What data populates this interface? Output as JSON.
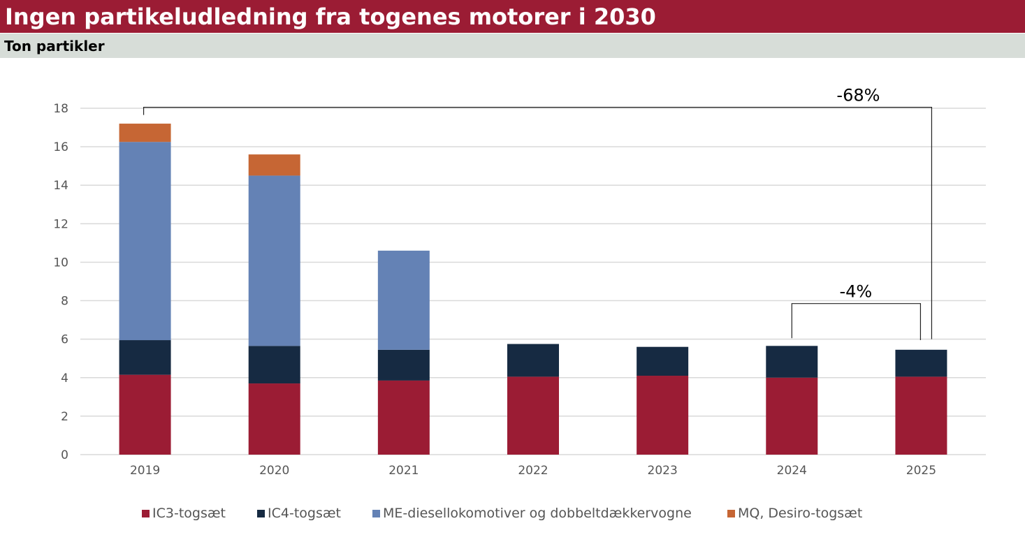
{
  "header": {
    "title": "Ingen partikeludledning fra togenes motorer i 2030",
    "subtitle": "Ton partikler"
  },
  "colors": {
    "title_bg": "#9b1c34",
    "subtitle_bg": "#d7ddd8",
    "gridline": "#d9d9d9",
    "axis_text": "#555555"
  },
  "chart_data": {
    "type": "bar",
    "stacked": true,
    "categories": [
      "2019",
      "2020",
      "2021",
      "2022",
      "2023",
      "2024",
      "2025"
    ],
    "series": [
      {
        "name": "IC3-togsæt",
        "color": "#9b1c34",
        "values": [
          4.15,
          3.7,
          3.85,
          4.05,
          4.1,
          4.0,
          4.05
        ]
      },
      {
        "name": "IC4-togsæt",
        "color": "#162a42",
        "values": [
          1.8,
          1.95,
          1.6,
          1.7,
          1.5,
          1.65,
          1.4
        ]
      },
      {
        "name": "ME-diesellokomotiver og dobbeltdækkervogne",
        "color": "#6482b5",
        "values": [
          10.3,
          8.85,
          5.15,
          0,
          0,
          0,
          0
        ]
      },
      {
        "name": "MQ, Desiro-togsæt",
        "color": "#c66634",
        "values": [
          0.95,
          1.1,
          0,
          0,
          0,
          0,
          0
        ]
      }
    ],
    "ylim": [
      0,
      18
    ],
    "yticks": [
      0,
      2,
      4,
      6,
      8,
      10,
      12,
      14,
      16,
      18
    ],
    "grid": true,
    "legend_position": "bottom",
    "annotations": [
      {
        "text": "-68%",
        "from": "2019",
        "to": "2025"
      },
      {
        "text": "-4%",
        "from": "2024",
        "to": "2025"
      }
    ]
  }
}
